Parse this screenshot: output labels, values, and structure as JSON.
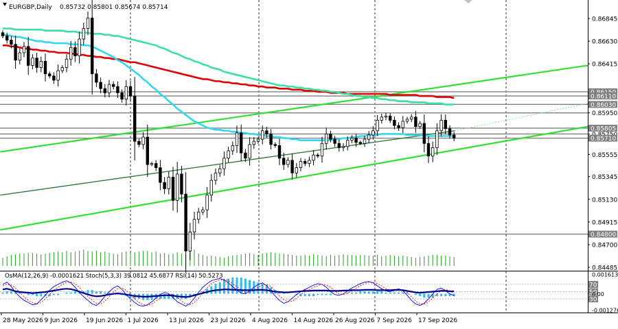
{
  "window": {
    "symbol_timeframe": "EURGBP,Daily",
    "ohlc": "0.85732 0.85801 0.85674 0.85714"
  },
  "colors": {
    "background": "#ffffff",
    "bull_candle": "#ffffff",
    "bear_candle": "#000000",
    "ema_red": "#e00000",
    "ema_teal": "#3ce0a0",
    "ema_cyan": "#30d8f0",
    "channel_green": "#30e030",
    "channel_dark": "#2c7a3c",
    "volume": "#20a020",
    "osma": "#30b8f0",
    "stoch_main": "#0000ff",
    "stoch_signal": "#ff0000",
    "rsi": "#00008b"
  },
  "chart_data": {
    "type": "candlestick",
    "symbol": "EURGBP",
    "timeframe": "Daily",
    "price_axis": {
      "range": [
        0.84485,
        0.86845
      ],
      "ticks": [
        "0.86845",
        "0.86630",
        "0.86415",
        "0.86150",
        "0.86110",
        "0.86030",
        "0.85950",
        "0.85805",
        "0.85750",
        "0.85710",
        "0.85555",
        "0.85345",
        "0.85130",
        "0.84915",
        "0.84800",
        "0.84700",
        "0.84485"
      ],
      "highlighted_levels": [
        "0.86150",
        "0.86110",
        "0.86030",
        "0.85805",
        "0.85710",
        "0.84800"
      ]
    },
    "horizontal_levels": [
      0.8615,
      0.8611,
      0.8603,
      0.8595,
      0.85805,
      0.8575,
      0.8571,
      0.848
    ],
    "date_labels": [
      "28 May 2026",
      "9 Jun 2026",
      "19 Jun 2026",
      "1 Jul 2026",
      "13 Jul 2026",
      "23 Jul 2026",
      "4 Aug 2026",
      "14 Aug 2026",
      "26 Aug 2026",
      "7 Sep 2026",
      "17 Sep 2026"
    ],
    "close": [
      0.8668,
      0.8664,
      0.866,
      0.8645,
      0.8652,
      0.8658,
      0.864,
      0.8647,
      0.8638,
      0.8644,
      0.8632,
      0.863,
      0.8626,
      0.8635,
      0.8638,
      0.8646,
      0.8657,
      0.8649,
      0.8665,
      0.8675,
      0.8685,
      0.8632,
      0.8624,
      0.8618,
      0.8614,
      0.8622,
      0.862,
      0.8614,
      0.8608,
      0.862,
      0.8611,
      0.8568,
      0.8565,
      0.8572,
      0.8546,
      0.8547,
      0.8543,
      0.8529,
      0.8523,
      0.8534,
      0.8512,
      0.8537,
      0.8518,
      0.8464,
      0.8482,
      0.8494,
      0.8501,
      0.8503,
      0.8517,
      0.8531,
      0.8538,
      0.8542,
      0.8552,
      0.8559,
      0.8564,
      0.8576,
      0.8557,
      0.8552,
      0.8565,
      0.8568,
      0.857,
      0.8578,
      0.8575,
      0.8565,
      0.8564,
      0.8552,
      0.8546,
      0.855,
      0.8538,
      0.8543,
      0.8549,
      0.8547,
      0.855,
      0.8555,
      0.8554,
      0.8566,
      0.8575,
      0.857,
      0.8566,
      0.8562,
      0.8563,
      0.8569,
      0.8571,
      0.8567,
      0.8566,
      0.857,
      0.8574,
      0.8578,
      0.8588,
      0.8591,
      0.8592,
      0.8588,
      0.8583,
      0.8581,
      0.8587,
      0.8589,
      0.8591,
      0.8582,
      0.8585,
      0.8566,
      0.8554,
      0.8562,
      0.8578,
      0.8588,
      0.858,
      0.8574,
      0.8571
    ],
    "series": [
      {
        "name": "EMA(200)",
        "values": [
          0.8659,
          0.8659,
          0.8658,
          0.8658,
          0.8657,
          0.8656,
          0.8656,
          0.8655,
          0.8655,
          0.8654,
          0.8654,
          0.8653,
          0.8653,
          0.8652,
          0.8652,
          0.8652,
          0.8651,
          0.8651,
          0.865,
          0.865,
          0.8649,
          0.8649,
          0.8648,
          0.8648,
          0.8647,
          0.8647,
          0.8646,
          0.8646,
          0.8645,
          0.8644,
          0.8643,
          0.8643,
          0.8642,
          0.8641,
          0.864,
          0.8639,
          0.8638,
          0.8637,
          0.8636,
          0.8635,
          0.8634,
          0.8633,
          0.8632,
          0.8631,
          0.863,
          0.8629,
          0.8628,
          0.8627,
          0.8627,
          0.8626,
          0.8625,
          0.8625,
          0.8624,
          0.8624,
          0.8623,
          0.8623,
          0.8622,
          0.8622,
          0.8621,
          0.8621,
          0.862,
          0.862,
          0.8619,
          0.8619,
          0.8619,
          0.8618,
          0.8618,
          0.8618,
          0.8617,
          0.8617,
          0.8617,
          0.8616,
          0.8616,
          0.8616,
          0.8615,
          0.8615,
          0.8615,
          0.8614,
          0.8614,
          0.8614,
          0.8614,
          0.8613,
          0.8613,
          0.8613,
          0.8613,
          0.8613,
          0.8613,
          0.8613,
          0.8613,
          0.8613,
          0.8613,
          0.8612,
          0.8612,
          0.8612,
          0.8612,
          0.8612,
          0.8612,
          0.8612,
          0.8611,
          0.8611,
          0.8611,
          0.8611,
          0.861,
          0.861,
          0.861,
          0.861,
          0.8609
        ]
      },
      {
        "name": "EMA(144)",
        "values": [
          0.8675,
          0.8675,
          0.8675,
          0.8674,
          0.8674,
          0.8674,
          0.8674,
          0.8674,
          0.8674,
          0.8674,
          0.8673,
          0.8673,
          0.8673,
          0.8673,
          0.8673,
          0.8672,
          0.8672,
          0.8672,
          0.8671,
          0.8671,
          0.8671,
          0.867,
          0.867,
          0.867,
          0.8669,
          0.8669,
          0.8668,
          0.8668,
          0.8667,
          0.8666,
          0.8665,
          0.8664,
          0.8663,
          0.8662,
          0.8661,
          0.866,
          0.8659,
          0.8657,
          0.8656,
          0.8654,
          0.8652,
          0.8651,
          0.8649,
          0.8647,
          0.8646,
          0.8644,
          0.8643,
          0.8641,
          0.864,
          0.8638,
          0.8637,
          0.8636,
          0.8634,
          0.8633,
          0.8632,
          0.8631,
          0.863,
          0.8629,
          0.8628,
          0.8627,
          0.8626,
          0.8625,
          0.8624,
          0.8623,
          0.8622,
          0.8621,
          0.8621,
          0.862,
          0.862,
          0.8619,
          0.8619,
          0.8618,
          0.8618,
          0.8617,
          0.8617,
          0.8616,
          0.8616,
          0.8615,
          0.8615,
          0.8614,
          0.8613,
          0.8613,
          0.8612,
          0.8611,
          0.8611,
          0.861,
          0.861,
          0.8609,
          0.8609,
          0.8608,
          0.8608,
          0.8607,
          0.8607,
          0.8606,
          0.8606,
          0.8606,
          0.8605,
          0.8605,
          0.8605,
          0.8605,
          0.8604,
          0.8604,
          0.8604,
          0.8604,
          0.8603,
          0.8603,
          0.8603
        ]
      },
      {
        "name": "EMA(50)",
        "values": [
          0.8669,
          0.8669,
          0.8668,
          0.8667,
          0.8667,
          0.8666,
          0.8665,
          0.8664,
          0.8663,
          0.8663,
          0.8662,
          0.8662,
          0.8661,
          0.8661,
          0.8661,
          0.8661,
          0.866,
          0.866,
          0.866,
          0.8659,
          0.8659,
          0.8658,
          0.8656,
          0.8654,
          0.8652,
          0.865,
          0.8648,
          0.8645,
          0.8643,
          0.864,
          0.8637,
          0.8634,
          0.8631,
          0.8627,
          0.8624,
          0.862,
          0.8617,
          0.8613,
          0.861,
          0.8606,
          0.8603,
          0.8599,
          0.8596,
          0.8593,
          0.859,
          0.8587,
          0.8585,
          0.8583,
          0.8581,
          0.858,
          0.8579,
          0.8579,
          0.8578,
          0.8578,
          0.8577,
          0.8577,
          0.8576,
          0.8576,
          0.8575,
          0.8575,
          0.8574,
          0.8574,
          0.8573,
          0.8573,
          0.8572,
          0.8572,
          0.8571,
          0.8571,
          0.857,
          0.857,
          0.8569,
          0.8569,
          0.8569,
          0.8569,
          0.8569,
          0.8569,
          0.8569,
          0.8569,
          0.857,
          0.857,
          0.8571,
          0.8571,
          0.8572,
          0.8572,
          0.8573,
          0.8573,
          0.8574,
          0.8574,
          0.8574,
          0.8575,
          0.8575,
          0.8575,
          0.8575,
          0.8575,
          0.8575,
          0.8574,
          0.8574,
          0.8574,
          0.8574,
          0.8574,
          0.8573,
          0.8573,
          0.8573,
          0.8573,
          0.8573,
          0.8573,
          0.8573
        ]
      }
    ],
    "volume": [
      12,
      14,
      16,
      17,
      18,
      18,
      19,
      19,
      18,
      17,
      18,
      19,
      20,
      21,
      20,
      22,
      20,
      21,
      22,
      24,
      22,
      21,
      22,
      20,
      21,
      19,
      18,
      17,
      20,
      21,
      19,
      20,
      21,
      22,
      22,
      20,
      21,
      18,
      19,
      17,
      18,
      20,
      18,
      16,
      22,
      24,
      18,
      16,
      14,
      15,
      14,
      13,
      12,
      14,
      15,
      16,
      17,
      18,
      19,
      17,
      16,
      18,
      19,
      20,
      19,
      18,
      18,
      17,
      16,
      15,
      15,
      16,
      15,
      17,
      16,
      15,
      14,
      16,
      15,
      16,
      17,
      16,
      16,
      15,
      16,
      16,
      15,
      15,
      16,
      14,
      15,
      16,
      15,
      14,
      15,
      14,
      13,
      12,
      13,
      14,
      15,
      16,
      16,
      15,
      15,
      14,
      13
    ],
    "indicator_panel": {
      "title": "OsMA(12,26,9) -0.0001621  Stoch(5,3,3) 39.0812 45.6877  RSI(14) 50.5273",
      "axis_ticks": [
        "0.0016133",
        "70",
        "50",
        "0.00",
        "30",
        "-0.0012765"
      ],
      "axis_range": [
        -0.0012765,
        0.0016133
      ],
      "osma": [
        0.0001,
        0.0002,
        0.0002,
        0.0001,
        0.0001,
        0.0,
        -0.0001,
        -0.0001,
        -0.0002,
        -0.0002,
        -0.0002,
        -0.0002,
        -0.0001,
        -0.0001,
        0.0,
        0.0001,
        0.0001,
        0.0002,
        0.0002,
        0.0002,
        0.0003,
        0.0003,
        0.0002,
        0.0002,
        0.0001,
        0.0001,
        0.0,
        0.0,
        -0.0001,
        -0.0002,
        -0.0003,
        -0.0004,
        -0.0004,
        -0.0005,
        -0.0005,
        -0.0005,
        -0.0004,
        -0.0004,
        -0.0004,
        -0.0004,
        -0.0004,
        -0.0004,
        -0.0004,
        -0.0004,
        -0.0003,
        -0.0002,
        0.0,
        0.0002,
        0.0004,
        0.0006,
        0.0008,
        0.0009,
        0.0011,
        0.0012,
        0.0013,
        0.0013,
        0.0013,
        0.0012,
        0.0011,
        0.001,
        0.0009,
        0.0008,
        0.0007,
        0.0005,
        0.0003,
        0.0002,
        0.0001,
        0.0,
        0.0,
        -0.0001,
        -0.0002,
        -0.0002,
        -0.0002,
        -0.0002,
        -0.0001,
        -0.0001,
        -0.0001,
        -0.0001,
        0.0,
        0.0,
        0.0,
        0.0001,
        0.0001,
        0.0001,
        0.0002,
        0.0002,
        0.0002,
        0.0002,
        0.0002,
        0.0002,
        0.0001,
        0.0001,
        0.0001,
        0.0001,
        0.0001,
        0.0001,
        0.0,
        -0.0001,
        -0.0002,
        -0.0003,
        -0.0003,
        -0.0003,
        -0.0002,
        -0.0002,
        -0.0002,
        -0.0002,
        -0.0002
      ],
      "stoch_main": [
        70,
        76,
        64,
        48,
        36,
        26,
        20,
        14,
        16,
        28,
        40,
        54,
        64,
        70,
        76,
        80,
        74,
        62,
        48,
        36,
        26,
        16,
        12,
        22,
        38,
        50,
        60,
        66,
        56,
        42,
        30,
        20,
        12,
        10,
        14,
        22,
        32,
        42,
        48,
        44,
        34,
        22,
        16,
        10,
        18,
        32,
        48,
        62,
        72,
        80,
        84,
        86,
        82,
        74,
        64,
        54,
        46,
        44,
        52,
        62,
        70,
        74,
        66,
        52,
        38,
        26,
        18,
        22,
        32,
        42,
        50,
        56,
        62,
        68,
        72,
        70,
        62,
        50,
        42,
        40,
        44,
        52,
        60,
        66,
        72,
        76,
        78,
        74,
        66,
        58,
        52,
        50,
        54,
        58,
        52,
        40,
        26,
        16,
        12,
        18,
        30,
        44,
        56,
        60,
        52,
        44,
        39
      ],
      "stoch_signal": [
        66,
        70,
        68,
        60,
        48,
        36,
        26,
        20,
        16,
        20,
        30,
        42,
        54,
        62,
        70,
        76,
        76,
        72,
        62,
        48,
        36,
        26,
        18,
        16,
        24,
        36,
        50,
        58,
        60,
        54,
        42,
        30,
        20,
        14,
        12,
        16,
        24,
        32,
        40,
        44,
        42,
        34,
        24,
        16,
        14,
        20,
        32,
        48,
        60,
        72,
        78,
        82,
        84,
        80,
        72,
        64,
        54,
        48,
        48,
        54,
        62,
        68,
        70,
        64,
        52,
        38,
        28,
        22,
        24,
        32,
        42,
        50,
        56,
        62,
        66,
        70,
        68,
        62,
        52,
        44,
        42,
        46,
        52,
        60,
        66,
        72,
        76,
        76,
        72,
        66,
        58,
        54,
        52,
        54,
        54,
        48,
        36,
        24,
        16,
        16,
        22,
        32,
        44,
        54,
        56,
        52,
        46
      ],
      "rsi": [
        56,
        58,
        55,
        51,
        49,
        48,
        47,
        46,
        47,
        48,
        49,
        51,
        53,
        55,
        57,
        58,
        57,
        54,
        50,
        46,
        42,
        39,
        37,
        38,
        40,
        42,
        44,
        45,
        44,
        42,
        40,
        38,
        37,
        36,
        36,
        37,
        38,
        39,
        40,
        40,
        39,
        37,
        36,
        35,
        37,
        40,
        43,
        46,
        49,
        52,
        54,
        55,
        56,
        56,
        55,
        55,
        54,
        54,
        54,
        54,
        55,
        55,
        54,
        52,
        50,
        49,
        48,
        48,
        49,
        50,
        51,
        52,
        52,
        53,
        53,
        53,
        53,
        52,
        52,
        52,
        53,
        53,
        54,
        54,
        54,
        55,
        55,
        55,
        54,
        54,
        54,
        54,
        55,
        55,
        54,
        52,
        50,
        48,
        47,
        48,
        49,
        50,
        51,
        52,
        52,
        51,
        51
      ]
    }
  }
}
